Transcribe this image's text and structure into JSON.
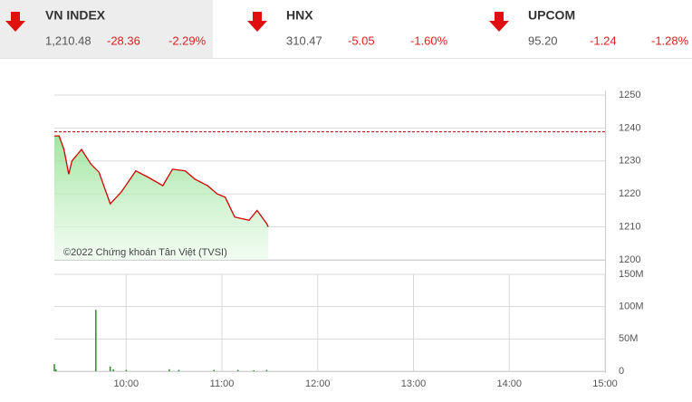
{
  "indices": [
    {
      "name": "VN INDEX",
      "value": "1,210.48",
      "change": "-28.36",
      "percent": "-2.29%"
    },
    {
      "name": "HNX",
      "value": "310.47",
      "change": "-5.05",
      "percent": "-1.60%"
    },
    {
      "name": "UPCOM",
      "value": "95.20",
      "change": "-1.24",
      "percent": "-1.28%"
    }
  ],
  "chart_data": [
    {
      "type": "line",
      "annotation": "©2022 Chứng khoán Tân Việt (TVSI)",
      "x": [
        "09:15",
        "09:18",
        "09:21",
        "09:24",
        "09:26",
        "09:32",
        "09:38",
        "09:43",
        "09:50",
        "09:57",
        "10:06",
        "10:14",
        "10:23",
        "10:29",
        "10:37",
        "10:43",
        "10:51",
        "10:57",
        "11:02",
        "11:08",
        "11:17",
        "11:22",
        "11:28",
        "11:29"
      ],
      "values": [
        1237.6,
        1237.6,
        1233.5,
        1226,
        1230,
        1233.5,
        1229,
        1226.6,
        1217,
        1220.6,
        1227,
        1225,
        1222.5,
        1227.5,
        1227,
        1224.5,
        1222.5,
        1220,
        1219,
        1213,
        1212,
        1215,
        1211,
        1210
      ],
      "color": "#d40000",
      "reference": 1238.84,
      "xlim": [
        "09:15",
        "15:00"
      ],
      "ylim": [
        1200,
        1250
      ],
      "yticks": [
        1200,
        1210,
        1220,
        1230,
        1240,
        1250
      ],
      "grid": true
    },
    {
      "type": "bar",
      "x": [
        "09:15",
        "09:16",
        "09:41",
        "09:50",
        "09:52",
        "10:00",
        "10:27",
        "10:33",
        "10:55",
        "11:10",
        "11:20",
        "11:28"
      ],
      "values": [
        11000000,
        3000000,
        95000000,
        7000000,
        3000000,
        2000000,
        3000000,
        2000000,
        2000000,
        2000000,
        1500000,
        2000000
      ],
      "color": "#2a8a2a",
      "xlim": [
        "09:15",
        "15:00"
      ],
      "ylim": [
        0,
        150000000
      ],
      "yticks": [
        0,
        {
          "value": 50000000,
          "label": "50M"
        },
        {
          "value": 100000000,
          "label": "100M"
        },
        {
          "value": 150000000,
          "label": "150M"
        }
      ],
      "xticks": [
        "10:00",
        "11:00",
        "12:00",
        "13:00",
        "14:00",
        "15:00"
      ],
      "grid": true
    }
  ]
}
